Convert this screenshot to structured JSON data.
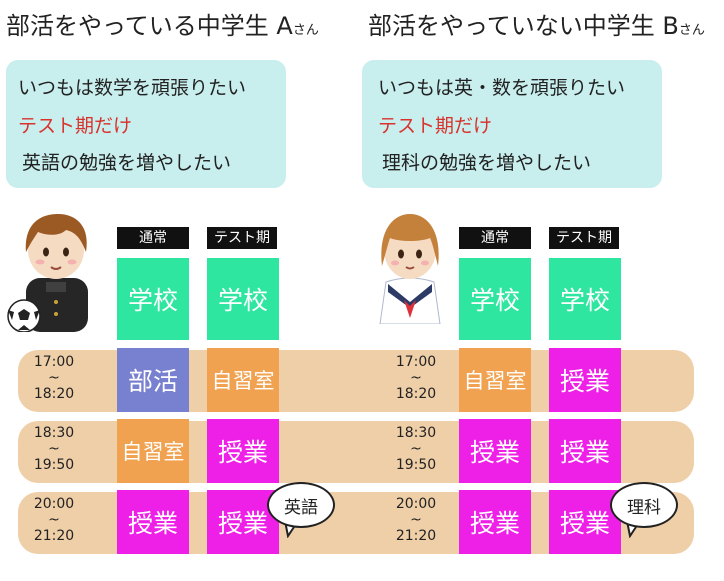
{
  "student_a": {
    "title": "部活をやっている中学生 A",
    "suffix": "さん",
    "goals": [
      "いつもは数学を頑張りたい",
      "テスト期だけ",
      "英語の勉強を増やしたい"
    ],
    "col_normal": "通常",
    "col_test": "テスト期",
    "school_normal": "学校",
    "school_test": "学校",
    "rows": [
      {
        "time_start": "17:00",
        "sep": "~",
        "time_end": "18:20",
        "normal": "部活",
        "test": "自習室"
      },
      {
        "time_start": "18:30",
        "sep": "~",
        "time_end": "19:50",
        "normal": "自習室",
        "test": "授業"
      },
      {
        "time_start": "20:00",
        "sep": "~",
        "time_end": "21:20",
        "normal": "授業",
        "test": "授業"
      }
    ],
    "bubble": "英語"
  },
  "student_b": {
    "title": "部活をやっていない中学生 B",
    "suffix": "さん",
    "goals": [
      "いつもは英・数を頑張りたい",
      "テスト期だけ",
      "理科の勉強を増やしたい"
    ],
    "col_normal": "通常",
    "col_test": "テスト期",
    "school_normal": "学校",
    "school_test": "学校",
    "rows": [
      {
        "time_start": "17:00",
        "sep": "~",
        "time_end": "18:20",
        "normal": "自習室",
        "test": "授業"
      },
      {
        "time_start": "18:30",
        "sep": "~",
        "time_end": "19:50",
        "normal": "授業",
        "test": "授業"
      },
      {
        "time_start": "20:00",
        "sep": "~",
        "time_end": "21:20",
        "normal": "授業",
        "test": "授業"
      }
    ],
    "bubble": "理科"
  },
  "colors": {
    "school": "#2ee6a0",
    "club": "#7880d0",
    "self_study": "#f0a250",
    "class": "#ee1fe6",
    "goal_box": "#c8eeee",
    "time_band": "#efcfa8",
    "highlight_text": "#d8322c"
  },
  "icons": {
    "student_a": "boy-with-soccer-ball-icon",
    "student_b": "girl-in-sailor-uniform-icon"
  }
}
